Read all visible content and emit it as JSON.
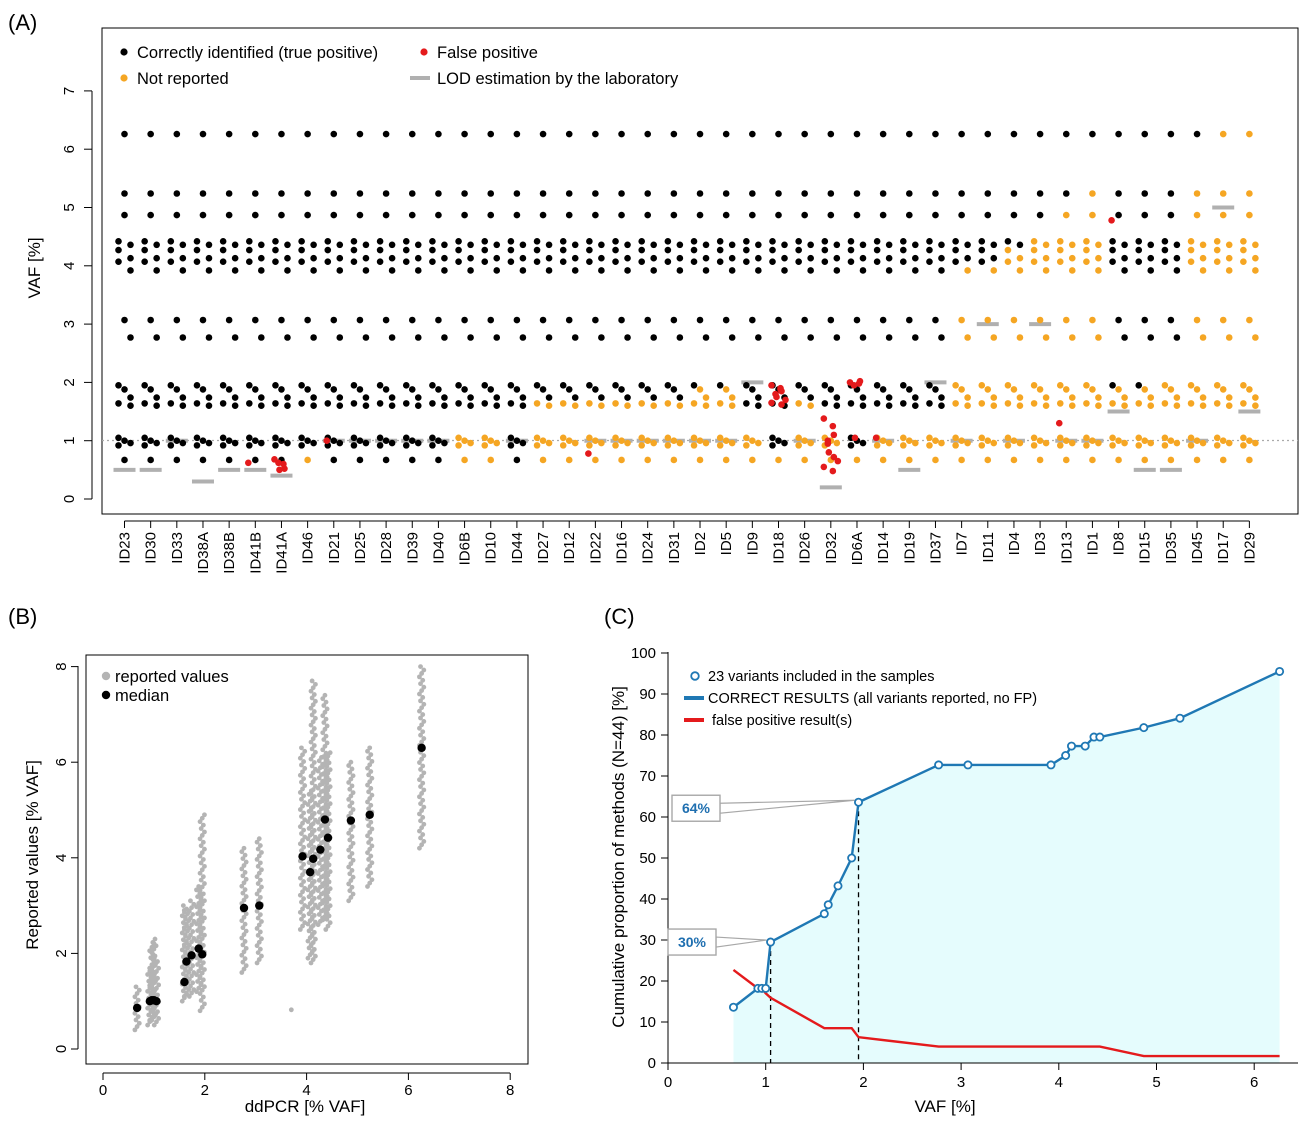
{
  "panels": {
    "a": {
      "tag": "(A)"
    },
    "b": {
      "tag": "(B)"
    },
    "c": {
      "tag": "(C)"
    }
  },
  "chart_data": [
    {
      "type": "scatter",
      "panel": "(A)",
      "ylabel": "VAF [%]",
      "xlabel": "",
      "ylim": [
        0,
        7
      ],
      "yticks": [
        0,
        1,
        2,
        3,
        4,
        5,
        6,
        7
      ],
      "grid": false,
      "legend_position": "top",
      "legend": [
        {
          "label": "Correctly identified (true positive)",
          "color": "#000000",
          "shape": "dot"
        },
        {
          "label": "False positive",
          "color": "#e41a1c",
          "shape": "dot"
        },
        {
          "label": "Not reported",
          "color": "#f5a623",
          "shape": "dot"
        },
        {
          "label": "LOD estimation by the laboratory",
          "color": "#b0b0b0",
          "shape": "bar"
        }
      ],
      "reference_line": {
        "y": 1,
        "style": "dotted"
      },
      "categories": [
        "ID23",
        "ID30",
        "ID33",
        "ID38A",
        "ID38B",
        "ID41B",
        "ID41A",
        "ID46",
        "ID21",
        "ID25",
        "ID28",
        "ID39",
        "ID40",
        "ID6B",
        "ID10",
        "ID44",
        "ID27",
        "ID12",
        "ID22",
        "ID16",
        "ID24",
        "ID31",
        "ID2",
        "ID5",
        "ID9",
        "ID18",
        "ID26",
        "ID32",
        "ID6A",
        "ID14",
        "ID19",
        "ID37",
        "ID7",
        "ID11",
        "ID4",
        "ID3",
        "ID13",
        "ID1",
        "ID8",
        "ID15",
        "ID35",
        "ID45",
        "ID17",
        "ID29"
      ],
      "variant_vafs": [
        0.67,
        0.92,
        0.96,
        1.0,
        1.05,
        1.6,
        1.64,
        1.74,
        1.88,
        1.95,
        2.77,
        3.07,
        3.92,
        4.07,
        4.13,
        4.27,
        4.36,
        4.42,
        4.87,
        5.24,
        6.26
      ],
      "lod": {
        "ID23": 0.5,
        "ID30": 0.5,
        "ID33": 1.0,
        "ID38A": 0.3,
        "ID38B": 0.5,
        "ID41B": 0.5,
        "ID41A": 0.4,
        "ID21": 1.0,
        "ID25": 1.0,
        "ID28": 1.0,
        "ID39": 1.0,
        "ID40": 1.0,
        "ID44": 1.0,
        "ID22": 1.0,
        "ID16": 1.0,
        "ID24": 1.0,
        "ID31": 1.0,
        "ID2": 1.0,
        "ID5": 1.0,
        "ID9": 2.0,
        "ID26": 1.0,
        "ID32": 0.2,
        "ID14": 1.0,
        "ID19": 0.5,
        "ID37": 2.0,
        "ID7": 1.0,
        "ID11": 3.0,
        "ID4": 1.0,
        "ID3": 3.0,
        "ID13": 1.0,
        "ID1": 1.0,
        "ID8": 1.5,
        "ID15": 0.5,
        "ID35": 0.5,
        "ID45": 1.0,
        "ID17": 5.0,
        "ID29": 1.5
      },
      "not_reported_threshold": {
        "ID46": 0.8,
        "ID6B": 1.1,
        "ID10": 1.1,
        "ID27": 1.7,
        "ID12": 1.7,
        "ID22": 1.7,
        "ID16": 1.7,
        "ID24": 1.7,
        "ID31": 1.7,
        "ID2": 1.9,
        "ID5": 1.9,
        "ID9": 1.1,
        "ID18": 0.9,
        "ID26": 1.7,
        "ID32": 1.1,
        "ID6A": 0.8,
        "ID14": 1.1,
        "ID19": 1.1,
        "ID37": 1.1,
        "ID7": 4.0,
        "ID11": 4.0,
        "ID4": 4.3,
        "ID3": 4.5,
        "ID13": 4.9,
        "ID1": 5.3,
        "ID8": 1.9,
        "ID15": 1.9,
        "ID35": 2.0,
        "ID45": 5.3,
        "ID17": 6.3,
        "ID29": 6.3
      },
      "false_positives": {
        "ID41B": [
          0.62
        ],
        "ID41A": [
          0.68,
          0.6,
          0.52,
          0.62,
          0.5
        ],
        "ID21": [
          1.0
        ],
        "ID22": [
          0.78
        ],
        "ID18": [
          1.95,
          1.9,
          1.85,
          1.8,
          1.75,
          1.7,
          1.65,
          1.88,
          1.62
        ],
        "ID32": [
          1.38,
          1.25,
          1.1,
          0.95,
          0.8,
          0.65,
          0.55,
          0.48,
          0.72,
          1.0
        ],
        "ID6A": [
          2.0,
          1.98,
          2.02,
          1.95,
          1.05
        ],
        "ID14": [
          1.05
        ],
        "ID13": [
          1.3
        ],
        "ID8": [
          4.78
        ]
      }
    },
    {
      "type": "scatter",
      "panel": "(B)",
      "xlabel": "ddPCR [% VAF]",
      "ylabel": "Reported values [% VAF]",
      "xlim": [
        0,
        8
      ],
      "ylim": [
        0,
        8
      ],
      "xticks": [
        0,
        2,
        4,
        6,
        8
      ],
      "yticks": [
        0,
        2,
        4,
        6,
        8
      ],
      "grid": false,
      "legend_position": "top-left",
      "series": [
        {
          "name": "reported values",
          "color": "#b4b4b4",
          "ranges": [
            {
              "x": 0.67,
              "min": 0.4,
              "max": 1.3
            },
            {
              "x": 0.92,
              "min": 0.5,
              "max": 1.7
            },
            {
              "x": 0.96,
              "min": 0.6,
              "max": 2.2
            },
            {
              "x": 1.0,
              "min": 0.6,
              "max": 2.3
            },
            {
              "x": 1.05,
              "min": 0.5,
              "max": 1.9
            },
            {
              "x": 1.6,
              "min": 1.0,
              "max": 3.0
            },
            {
              "x": 1.64,
              "min": 1.1,
              "max": 2.9
            },
            {
              "x": 1.74,
              "min": 1.1,
              "max": 3.1
            },
            {
              "x": 1.88,
              "min": 1.2,
              "max": 3.4
            },
            {
              "x": 1.95,
              "min": 0.8,
              "max": 4.9
            },
            {
              "x": 2.77,
              "min": 1.6,
              "max": 4.2
            },
            {
              "x": 3.07,
              "min": 1.8,
              "max": 4.4
            },
            {
              "x": 3.92,
              "min": 2.5,
              "max": 6.3
            },
            {
              "x": 4.07,
              "min": 1.9,
              "max": 5.4
            },
            {
              "x": 4.13,
              "min": 1.8,
              "max": 7.7
            },
            {
              "x": 4.27,
              "min": 2.6,
              "max": 6.1
            },
            {
              "x": 4.36,
              "min": 2.7,
              "max": 7.4
            },
            {
              "x": 4.42,
              "min": 2.5,
              "max": 6.2
            },
            {
              "x": 4.87,
              "min": 3.1,
              "max": 6.0
            },
            {
              "x": 5.24,
              "min": 3.4,
              "max": 6.3
            },
            {
              "x": 6.26,
              "min": 4.2,
              "max": 8.0
            }
          ],
          "extra_points": [
            {
              "x": 3.7,
              "y": 0.82
            }
          ]
        },
        {
          "name": "median",
          "color": "#000000",
          "x": [
            0.67,
            0.92,
            0.96,
            1.0,
            1.05,
            1.6,
            1.64,
            1.74,
            1.88,
            1.95,
            2.77,
            3.07,
            3.92,
            4.07,
            4.13,
            4.27,
            4.36,
            4.42,
            4.87,
            5.24,
            6.26
          ],
          "y": [
            0.86,
            1.0,
            1.02,
            1.02,
            1.0,
            1.4,
            1.83,
            1.96,
            2.1,
            1.98,
            2.95,
            3.0,
            4.03,
            3.7,
            3.98,
            4.17,
            4.8,
            4.42,
            4.78,
            4.9,
            6.3
          ]
        }
      ]
    },
    {
      "type": "line",
      "panel": "(C)",
      "xlabel": "VAF [%]",
      "ylabel": "Cumulative proportion of methods (N=44) [%]",
      "xlim": [
        0,
        6.5
      ],
      "ylim": [
        0,
        100
      ],
      "xticks": [
        0,
        1,
        2,
        3,
        4,
        5,
        6
      ],
      "yticks": [
        0,
        10,
        20,
        30,
        40,
        50,
        60,
        70,
        80,
        90,
        100
      ],
      "grid": false,
      "legend_position": "top-left",
      "legend": [
        {
          "label": "23 variants included in the samples",
          "color": "#1f78b4",
          "shape": "open-circle"
        },
        {
          "label": "CORRECT RESULTS (all variants reported, no FP)",
          "color": "#1f78b4",
          "shape": "line"
        },
        {
          "label": "false positive result(s)",
          "color": "#e41a1c",
          "shape": "line"
        }
      ],
      "series": [
        {
          "name": "CORRECT RESULTS (all variants reported, no FP)",
          "color": "#1f78b4",
          "fill": "#e5fcfd",
          "x": [
            0.67,
            0.92,
            0.96,
            1.0,
            1.05,
            1.6,
            1.64,
            1.74,
            1.88,
            1.95,
            2.77,
            3.07,
            3.92,
            4.07,
            4.13,
            4.27,
            4.36,
            4.42,
            4.87,
            5.24,
            6.26
          ],
          "y": [
            13.6,
            18.2,
            18.2,
            18.2,
            29.5,
            36.4,
            38.6,
            43.2,
            50.0,
            63.6,
            72.7,
            72.7,
            72.7,
            75.0,
            77.3,
            77.3,
            79.5,
            79.5,
            81.8,
            84.1,
            95.5
          ]
        },
        {
          "name": "false positive result(s)",
          "color": "#e41a1c",
          "x": [
            0.67,
            0.92,
            0.96,
            1.0,
            1.05,
            1.6,
            1.88,
            1.95,
            2.77,
            4.42,
            4.87,
            6.26
          ],
          "y": [
            22.7,
            18.2,
            18.2,
            17.0,
            15.9,
            8.5,
            8.5,
            6.3,
            4.0,
            4.0,
            1.7,
            1.7
          ]
        }
      ],
      "reference_lines": [
        {
          "x": 1.05
        },
        {
          "x": 1.95
        }
      ],
      "annotations": [
        {
          "text": "64%",
          "x": 1.95,
          "y": 63.6
        },
        {
          "text": "30%",
          "x": 1.05,
          "y": 29.5
        }
      ]
    }
  ]
}
